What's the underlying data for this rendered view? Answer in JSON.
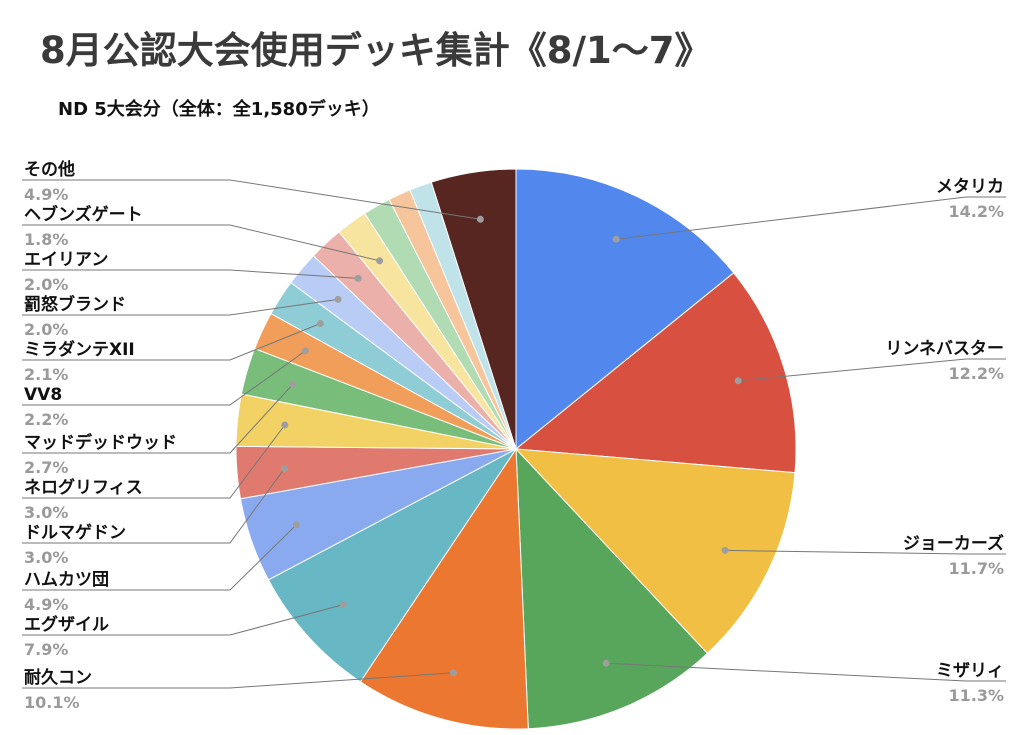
{
  "chart_data": {
    "type": "pie",
    "title": "8月公認大会使用デッキ集計《8/1〜7》",
    "subtitle": "ND 5大会分（全体：全1,580デッキ）",
    "slices": [
      {
        "label": "メタリカ",
        "value": 14.2,
        "display": "14.2%",
        "color": "#5287ed"
      },
      {
        "label": "リンネバスター",
        "value": 12.2,
        "display": "12.2%",
        "color": "#d85040"
      },
      {
        "label": "ジョーカーズ",
        "value": 11.7,
        "display": "11.7%",
        "color": "#f0bf44"
      },
      {
        "label": "ミザリィ",
        "value": 11.3,
        "display": "11.3%",
        "color": "#58a65c"
      },
      {
        "label": "耐久コン",
        "value": 10.1,
        "display": "10.1%",
        "color": "#ec7730"
      },
      {
        "label": "エグザイル",
        "value": 7.9,
        "display": "7.9%",
        "color": "#67b7c4"
      },
      {
        "label": "ハムカツ団",
        "value": 4.9,
        "display": "4.9%",
        "color": "#8aaaf0"
      },
      {
        "label": "ドルマゲドン",
        "value": 3.0,
        "display": "3.0%",
        "color": "#e07a6e"
      },
      {
        "label": "ネログリフィス",
        "value": 3.0,
        "display": "3.0%",
        "color": "#f2d265"
      },
      {
        "label": "マッドデッドウッド",
        "value": 2.7,
        "display": "2.7%",
        "color": "#78bd7a"
      },
      {
        "label": "VV8",
        "value": 2.2,
        "display": "2.2%",
        "color": "#f09e5a"
      },
      {
        "label": "ミラダンテXII",
        "value": 2.1,
        "display": "2.1%",
        "color": "#8fcdd6"
      },
      {
        "label": "罰怒ブランド",
        "value": 2.0,
        "display": "2.0%",
        "color": "#b9ccf6"
      },
      {
        "label": "エイリアン",
        "value": 2.0,
        "display": "2.0%",
        "color": "#ecb0aa"
      },
      {
        "label": "ヘブンズゲート",
        "value": 1.8,
        "display": "1.8%",
        "color": "#f7e49f"
      },
      {
        "label": "",
        "value": 1.6,
        "display": "",
        "color": "#b1dbb3"
      },
      {
        "label": "",
        "value": 1.3,
        "display": "",
        "color": "#f6c59b"
      },
      {
        "label": "",
        "value": 1.3,
        "display": "",
        "color": "#c0e3e9"
      },
      {
        "label": "その他",
        "value": 4.9,
        "display": "4.9%",
        "color": "#572620"
      }
    ]
  }
}
